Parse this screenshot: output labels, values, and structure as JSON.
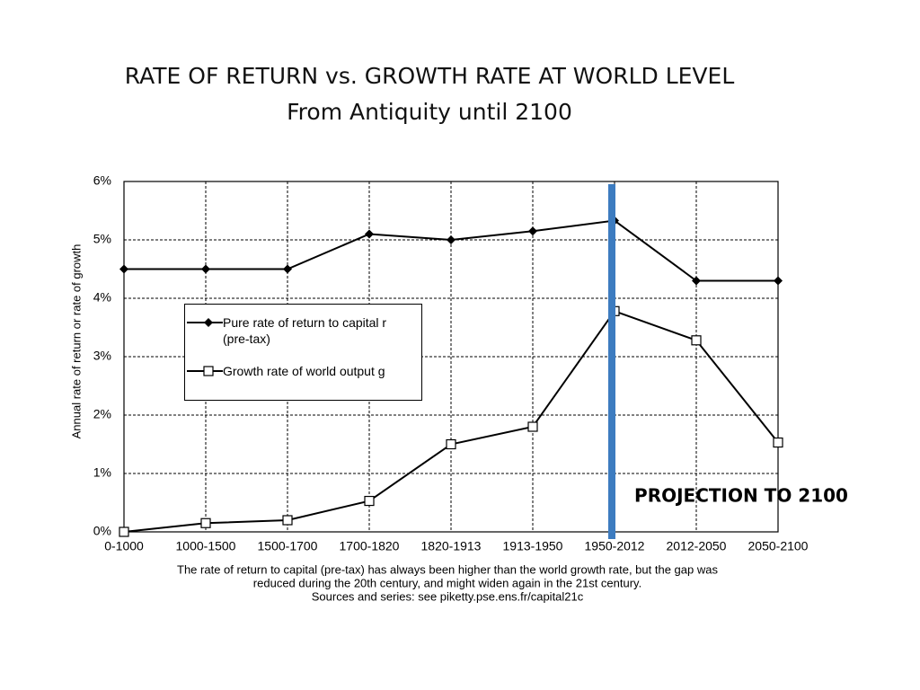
{
  "chart_data": {
    "type": "line",
    "title": "RATE OF RETURN vs. GROWTH RATE AT WORLD LEVEL",
    "subtitle": "From Antiquity until 2100",
    "y_label": "Annual rate of return or rate of growth",
    "categories": [
      "0-1000",
      "1000-1500",
      "1500-1700",
      "1700-1820",
      "1820-1913",
      "1913-1950",
      "1950-2012",
      "2012-2050",
      "2050-2100"
    ],
    "series": [
      {
        "name": "Pure rate of return to capital r (pre-tax)",
        "color": "#000000",
        "marker": "diamond",
        "values": [
          4.5,
          4.5,
          4.5,
          5.1,
          5.0,
          5.15,
          5.33,
          4.3,
          4.3
        ]
      },
      {
        "name": "Growth rate of world output g",
        "color": "#000000",
        "marker": "square",
        "values": [
          0.0,
          0.15,
          0.2,
          0.53,
          1.5,
          1.8,
          3.78,
          3.28,
          1.53
        ]
      }
    ],
    "ylim": [
      0,
      6
    ],
    "yticks": [
      {
        "value": 0,
        "label": "0%"
      },
      {
        "value": 1,
        "label": "1%"
      },
      {
        "value": 2,
        "label": "2%"
      },
      {
        "value": 3,
        "label": "3%"
      },
      {
        "value": 4,
        "label": "4%"
      },
      {
        "value": 5,
        "label": "5%"
      },
      {
        "value": 6,
        "label": "6%"
      }
    ],
    "grid": true,
    "annotation": "PROJECTION TO 2100",
    "caption": [
      "The rate of return to capital (pre-tax) has always been higher than the world growth rate, but the gap was",
      "reduced during the 20th century, and might widen again in the 21st century.",
      "Sources and series: see piketty.pse.ens.fr/capital21c"
    ]
  }
}
